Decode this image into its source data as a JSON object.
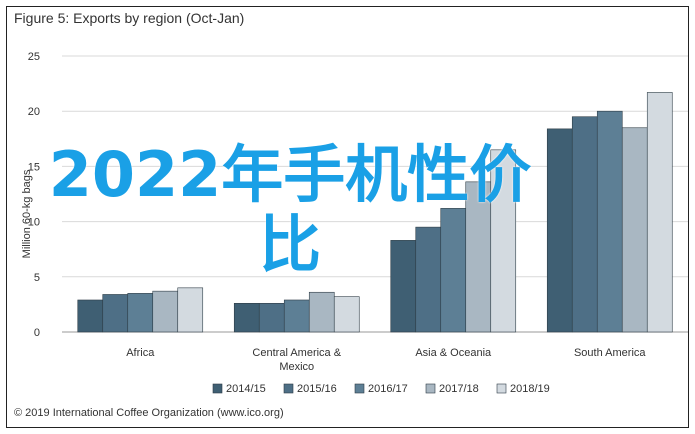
{
  "page_title": "Figure 5: Exports by region (Oct-Jan)",
  "footer_text": "© 2019 International Coffee Organization (www.ico.org)",
  "overlay_text": "2022年手机性价比",
  "chart_data": {
    "type": "bar",
    "title": "Figure 5: Exports by region (Oct-Jan)",
    "xlabel": "",
    "ylabel": "Million 60-kg bags",
    "ylim": [
      0,
      25
    ],
    "yticks": [
      0,
      5,
      10,
      15,
      20,
      25
    ],
    "grid": true,
    "legend_position": "bottom",
    "categories": [
      "Africa",
      "Central America & Mexico",
      "Asia & Oceania",
      "South America"
    ],
    "category_labels": [
      [
        "Africa"
      ],
      [
        "Central America &",
        "Mexico"
      ],
      [
        "Asia & Oceania"
      ],
      [
        "South America"
      ]
    ],
    "series": [
      {
        "name": "2014/15",
        "color": "#3f5f73",
        "values": [
          2.9,
          2.6,
          8.3,
          18.4
        ]
      },
      {
        "name": "2015/16",
        "color": "#4e6f86",
        "values": [
          3.4,
          2.6,
          9.5,
          19.5
        ]
      },
      {
        "name": "2016/17",
        "color": "#5d7f95",
        "values": [
          3.5,
          2.9,
          11.2,
          20.0
        ]
      },
      {
        "name": "2017/18",
        "color": "#a9b7c2",
        "values": [
          3.7,
          3.6,
          13.6,
          18.5
        ]
      },
      {
        "name": "2018/19",
        "color": "#d3dae0",
        "values": [
          4.0,
          3.2,
          16.5,
          21.7
        ]
      }
    ]
  }
}
